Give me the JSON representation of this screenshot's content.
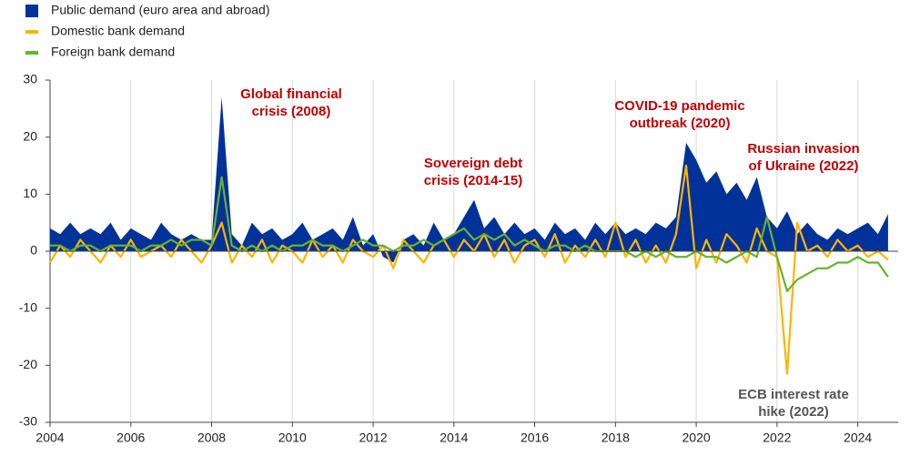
{
  "chart_data": {
    "type": "area-line",
    "annotations": [
      [
        "Global financial",
        "crisis (2008)"
      ],
      [
        "Sovereign debt",
        "crisis (2014-15)"
      ],
      [
        "COVID-19 pandemic",
        "outbreak (2020)"
      ],
      [
        "Russian invasion",
        "of Ukraine (2022)"
      ],
      [
        "ECB interest rate",
        "hike (2022)"
      ]
    ],
    "x": [
      2004,
      2004.25,
      2004.5,
      2004.75,
      2005,
      2005.25,
      2005.5,
      2005.75,
      2006,
      2006.25,
      2006.5,
      2006.75,
      2007,
      2007.25,
      2007.5,
      2007.75,
      2008,
      2008.25,
      2008.5,
      2008.75,
      2009,
      2009.25,
      2009.5,
      2009.75,
      2010,
      2010.25,
      2010.5,
      2010.75,
      2011,
      2011.25,
      2011.5,
      2011.75,
      2012,
      2012.25,
      2012.5,
      2012.75,
      2013,
      2013.25,
      2013.5,
      2013.75,
      2014,
      2014.25,
      2014.5,
      2014.75,
      2015,
      2015.25,
      2015.5,
      2015.75,
      2016,
      2016.25,
      2016.5,
      2016.75,
      2017,
      2017.25,
      2017.5,
      2017.75,
      2018,
      2018.25,
      2018.5,
      2018.75,
      2019,
      2019.25,
      2019.5,
      2019.75,
      2020,
      2020.25,
      2020.5,
      2020.75,
      2021,
      2021.25,
      2021.5,
      2021.75,
      2022,
      2022.25,
      2022.5,
      2022.75,
      2023,
      2023.25,
      2023.5,
      2023.75,
      2024,
      2024.25,
      2024.5,
      2024.75
    ],
    "series": [
      {
        "name": "Public demand (euro area and abroad)",
        "color": "#003299",
        "kind": "area",
        "values": [
          4,
          3,
          5,
          3,
          4,
          3,
          5,
          2,
          4,
          3,
          2,
          5,
          3,
          2,
          3,
          2,
          2,
          27,
          3,
          1,
          5,
          3,
          4,
          2,
          3,
          5,
          2,
          3,
          4,
          2,
          6,
          1,
          3,
          -1,
          -2,
          2,
          3,
          1,
          5,
          2,
          3,
          6,
          9,
          4,
          6,
          3,
          5,
          3,
          4,
          2,
          5,
          3,
          4,
          2,
          5,
          3,
          5,
          3,
          4,
          3,
          5,
          4,
          6,
          19,
          16,
          12,
          14,
          10,
          12,
          9,
          13,
          6,
          4,
          7,
          3,
          5,
          3,
          2,
          4,
          3,
          4,
          5,
          3,
          6.5
        ]
      },
      {
        "name": "Domestic bank demand",
        "color": "#ffb400",
        "kind": "line",
        "values": [
          -2,
          1,
          -1,
          2,
          0,
          -2,
          1,
          -1,
          2,
          -1,
          0,
          1,
          -1,
          2,
          0,
          -2,
          1,
          5,
          -2,
          1,
          -1,
          2,
          -2,
          1,
          0,
          -2,
          2,
          -1,
          1,
          -2,
          2,
          0,
          -1,
          1,
          -3,
          2,
          0,
          -2,
          1,
          2,
          -1,
          2,
          0,
          3,
          -1,
          2,
          -2,
          1,
          2,
          -1,
          3,
          -2,
          1,
          -1,
          2,
          -1,
          5,
          -1,
          2,
          -2,
          1,
          -2,
          3,
          15,
          -3,
          2,
          -2,
          3,
          1,
          -2,
          4,
          0,
          -1,
          -21.5,
          5,
          0,
          1,
          -1,
          2,
          0,
          1,
          -1,
          0,
          -1.5
        ]
      },
      {
        "name": "Foreign bank demand",
        "color": "#65b32e",
        "kind": "line",
        "values": [
          1,
          1,
          0,
          1,
          1,
          0,
          1,
          1,
          1,
          0,
          1,
          1,
          2,
          1,
          2,
          2,
          1,
          13,
          1,
          0,
          1,
          0,
          1,
          0,
          1,
          1,
          2,
          1,
          1,
          0,
          1,
          2,
          1,
          1,
          0,
          1,
          1,
          2,
          1,
          2,
          3,
          4,
          2,
          3,
          2,
          3,
          1,
          2,
          1,
          0,
          1,
          1,
          0,
          1,
          0,
          0,
          0,
          0,
          -1,
          0,
          -1,
          0,
          -1,
          -1,
          0,
          -1,
          -1,
          -2,
          -1,
          0,
          -1,
          6,
          -1,
          -7,
          -5,
          -4,
          -3,
          -3,
          -2,
          -2,
          -1,
          -2,
          -2,
          -4.5
        ]
      }
    ],
    "xlim": [
      2004,
      2025
    ],
    "xticks": [
      2004,
      2006,
      2008,
      2010,
      2012,
      2014,
      2016,
      2018,
      2020,
      2022,
      2024
    ],
    "ylim": [
      -30,
      30
    ],
    "yticks": [
      30,
      20,
      10,
      0,
      -10,
      -20,
      -30
    ],
    "grid": "x"
  }
}
